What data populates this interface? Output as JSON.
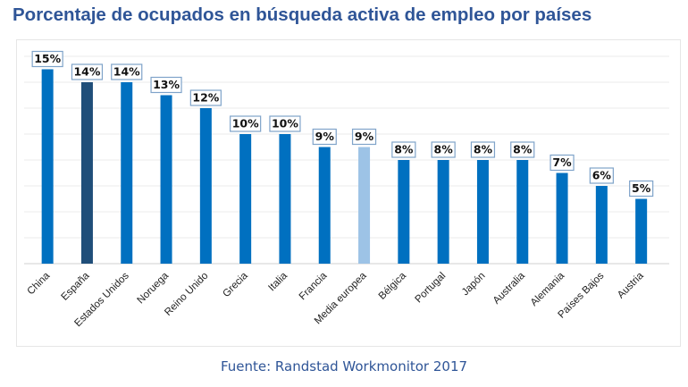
{
  "title": "Porcentaje de ocupados en búsqueda activa de empleo por países",
  "source": "Fuente: Randstad Workmonitor 2017",
  "chart_data": {
    "type": "bar",
    "title": "Porcentaje de ocupados en búsqueda activa de empleo por países",
    "xlabel": "",
    "ylabel": "",
    "ylim": [
      0,
      16
    ],
    "grid": true,
    "legend": "none",
    "categories": [
      "China",
      "España",
      "Estados Unidos",
      "Noruega",
      "Reino Unido",
      "Grecia",
      "Italia",
      "Francia",
      "Media europea",
      "Bélgica",
      "Portugal",
      "Japón",
      "Australia",
      "Alemania",
      "Países Bajos",
      "Austria"
    ],
    "values": [
      15,
      14,
      14,
      13,
      12,
      10,
      10,
      9,
      9,
      8,
      8,
      8,
      8,
      7,
      6,
      5
    ],
    "value_labels": [
      "15%",
      "14%",
      "14%",
      "13%",
      "12%",
      "10%",
      "10%",
      "9%",
      "9%",
      "8%",
      "8%",
      "8%",
      "8%",
      "7%",
      "6%",
      "5%"
    ],
    "colors": {
      "default": "#0070c0",
      "highlight": "#1f4e79",
      "average": "#9dc3e6"
    },
    "bar_colors": [
      "default",
      "highlight",
      "default",
      "default",
      "default",
      "default",
      "default",
      "default",
      "average",
      "default",
      "default",
      "default",
      "default",
      "default",
      "default",
      "default"
    ]
  }
}
